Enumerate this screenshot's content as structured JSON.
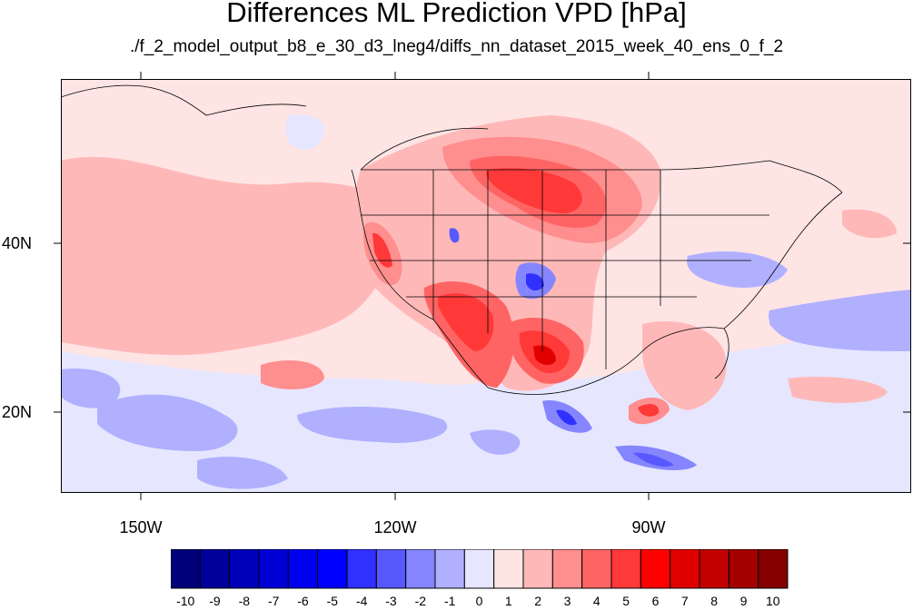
{
  "title": "Differences ML Prediction VPD [hPa]",
  "subtitle": "./f_2_model_output_b8_e_30_d3_lneg4/diffs_nn_dataset_2015_week_40_ens_0_f_2",
  "map": {
    "lat_labels": [
      "40N",
      "20N"
    ],
    "lon_labels": [
      "150W",
      "120W",
      "90W"
    ],
    "extent": {
      "lon_min": -159.5,
      "lon_max": -59.5,
      "lat_min": 11,
      "lat_max": 60
    }
  },
  "colorbar": {
    "labels": [
      "-10",
      "-9",
      "-8",
      "-7",
      "-6",
      "-5",
      "-4",
      "-3",
      "-2",
      "-1",
      "0",
      "1",
      "2",
      "3",
      "4",
      "5",
      "6",
      "7",
      "8",
      "9",
      "10"
    ],
    "colors": [
      "#00007a",
      "#00009a",
      "#0000b8",
      "#0000d5",
      "#0000f0",
      "#0000ff",
      "#3030ff",
      "#5858ff",
      "#8585ff",
      "#b0b0ff",
      "#e6e6ff",
      "#ffe4e4",
      "#ffb8b8",
      "#ff8e8e",
      "#ff6464",
      "#ff3838",
      "#ff0000",
      "#e00000",
      "#c20000",
      "#a40000",
      "#850000"
    ]
  }
}
